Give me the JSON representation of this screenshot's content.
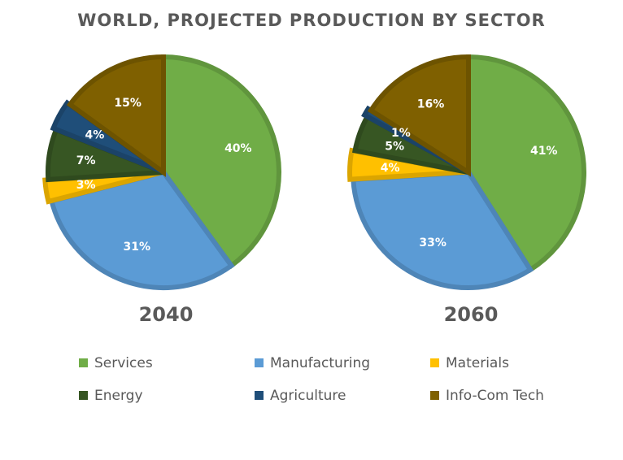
{
  "chart_data": {
    "type": "pie",
    "title": "WORLD, PROJECTED PRODUCTION BY SECTOR",
    "legend_position": "bottom",
    "categories": [
      "Services",
      "Manufacturing",
      "Materials",
      "Energy",
      "Agriculture",
      "Info-Com Tech"
    ],
    "colors": {
      "Services": "#70ad47",
      "Manufacturing": "#5b9bd5",
      "Materials": "#ffc000",
      "Energy": "#375623",
      "Agriculture": "#1f4e79",
      "Info-Com Tech": "#7f6000"
    },
    "series": [
      {
        "name": "2040",
        "values": [
          40,
          31,
          3,
          7,
          4,
          15
        ],
        "labels": [
          "40%",
          "31%",
          "3%",
          "7%",
          "4%",
          "15%"
        ]
      },
      {
        "name": "2060",
        "values": [
          41,
          33,
          4,
          5,
          1,
          16
        ],
        "labels": [
          "41%",
          "33%",
          "4%",
          "5%",
          "1%",
          "16%"
        ]
      }
    ]
  }
}
